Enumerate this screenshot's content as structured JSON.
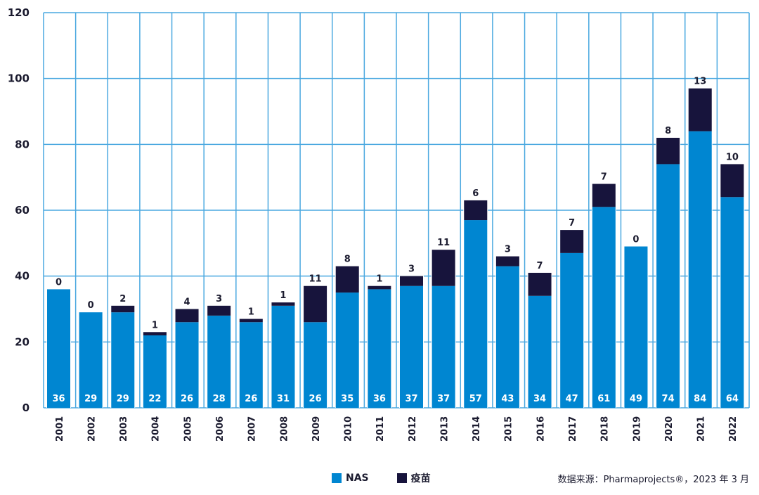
{
  "chart_data": {
    "type": "bar",
    "stacked": true,
    "title": "",
    "xlabel": "",
    "ylabel": "",
    "ylim": [
      0,
      120
    ],
    "yticks": [
      0,
      20,
      40,
      60,
      80,
      100,
      120
    ],
    "grid": true,
    "legend_position": "bottom",
    "categories": [
      "2001",
      "2002",
      "2003",
      "2004",
      "2005",
      "2006",
      "2007",
      "2008",
      "2009",
      "2010",
      "2011",
      "2012",
      "2013",
      "2014",
      "2015",
      "2016",
      "2017",
      "2018",
      "2019",
      "2020",
      "2021",
      "2022"
    ],
    "series": [
      {
        "name": "NAS",
        "color": "#0086D1",
        "values": [
          36,
          29,
          29,
          22,
          26,
          28,
          26,
          31,
          26,
          35,
          36,
          37,
          37,
          57,
          43,
          34,
          47,
          61,
          49,
          74,
          84,
          64
        ]
      },
      {
        "name": "疫苗",
        "color": "#17143C",
        "values": [
          0,
          0,
          2,
          1,
          4,
          3,
          1,
          1,
          11,
          8,
          1,
          3,
          11,
          6,
          3,
          7,
          7,
          7,
          0,
          8,
          13,
          10
        ]
      }
    ]
  },
  "colors": {
    "grid": "#4AA8E0",
    "text": "#1b1b2f"
  },
  "legend": {
    "items": [
      {
        "label": "NAS",
        "color": "#0086D1"
      },
      {
        "label": "疫苗",
        "color": "#17143C"
      }
    ]
  },
  "source": "数据来源：Pharmaprojects®，2023 年 3 月"
}
